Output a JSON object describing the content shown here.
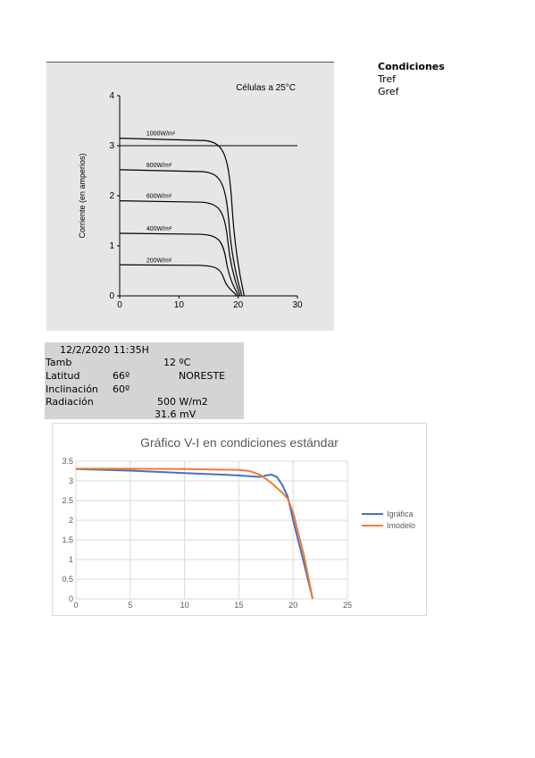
{
  "conditions": {
    "heading": "Condiciones",
    "tref": "Tref",
    "gref": "Gref"
  },
  "info": {
    "datetime": "12/2/2020 11:35H",
    "tamb_label": "Tamb",
    "tamb_value": "12 ºC",
    "latitud_label": "Latitud",
    "latitud_value": "66º",
    "orientation": "NORESTE",
    "inclinacion_label": "Inclinación",
    "inclinacion_value": "60º",
    "radiacion_label": "Radiación",
    "radiacion_value": "500 W/m2",
    "voltage_value": "31.6 mV"
  },
  "chart_data": [
    {
      "type": "line",
      "title": "",
      "annotation": "Células a 25°C",
      "xlabel": "",
      "ylabel": "Corriente (en amperios)",
      "xlim": [
        0,
        30
      ],
      "ylim": [
        0,
        4
      ],
      "xticks": [
        0,
        10,
        20,
        30
      ],
      "yticks": [
        0,
        1,
        2,
        3,
        4
      ],
      "grid": false,
      "reference_line_y": 3.0,
      "series": [
        {
          "name": "1000W/m²",
          "isc": 3.15,
          "voc": 21.0,
          "knee": 17.0,
          "x": [
            0,
            5,
            10,
            15,
            16,
            17,
            18,
            19,
            20,
            21
          ],
          "y": [
            3.15,
            3.13,
            3.11,
            3.08,
            3.06,
            3.0,
            2.6,
            1.7,
            0.8,
            0
          ]
        },
        {
          "name": "800W/m²",
          "isc": 2.52,
          "voc": 20.6,
          "knee": 16.5,
          "x": [
            0,
            5,
            10,
            15,
            16,
            17,
            18,
            19,
            20,
            20.6
          ],
          "y": [
            2.52,
            2.51,
            2.49,
            2.47,
            2.44,
            2.3,
            1.8,
            1.1,
            0.4,
            0
          ]
        },
        {
          "name": "600W/m²",
          "isc": 1.9,
          "voc": 20.3,
          "knee": 16.3,
          "x": [
            0,
            5,
            10,
            15,
            16,
            17,
            18,
            19,
            20,
            20.3
          ],
          "y": [
            1.9,
            1.89,
            1.88,
            1.86,
            1.83,
            1.7,
            1.3,
            0.8,
            0.25,
            0
          ]
        },
        {
          "name": "400W/m²",
          "isc": 1.25,
          "voc": 20.0,
          "knee": 16.0,
          "x": [
            0,
            5,
            10,
            15,
            16,
            17,
            18,
            19,
            20
          ],
          "y": [
            1.25,
            1.25,
            1.24,
            1.23,
            1.2,
            1.08,
            0.8,
            0.4,
            0
          ]
        },
        {
          "name": "200W/m²",
          "isc": 0.62,
          "voc": 19.7,
          "knee": 15.6,
          "x": [
            0,
            5,
            10,
            15,
            16,
            17,
            18,
            19,
            19.7
          ],
          "y": [
            0.62,
            0.62,
            0.61,
            0.6,
            0.58,
            0.5,
            0.35,
            0.15,
            0
          ]
        }
      ]
    },
    {
      "type": "line",
      "title": "Gráfico V-I en condiciones estándar",
      "xlabel": "",
      "ylabel": "",
      "xlim": [
        0,
        25
      ],
      "ylim": [
        0,
        3.5
      ],
      "xticks": [
        0,
        5,
        10,
        15,
        20,
        25
      ],
      "yticks": [
        0,
        0.5,
        1,
        1.5,
        2,
        2.5,
        3,
        3.5
      ],
      "grid": true,
      "legend": "right",
      "series": [
        {
          "name": "Igráfica",
          "color": "#4472c4",
          "x": [
            0,
            5,
            10,
            15,
            17,
            17.5,
            18,
            18.5,
            19,
            19.5,
            20,
            21,
            21.8
          ],
          "y": [
            3.3,
            3.26,
            3.2,
            3.14,
            3.1,
            3.14,
            3.16,
            3.1,
            2.9,
            2.6,
            2.0,
            0.9,
            0
          ]
        },
        {
          "name": "Imodelo",
          "color": "#ed7d31",
          "x": [
            0,
            5,
            10,
            15,
            16,
            17,
            18,
            19,
            19.5,
            20,
            21,
            21.8
          ],
          "y": [
            3.31,
            3.31,
            3.3,
            3.28,
            3.25,
            3.15,
            2.95,
            2.7,
            2.55,
            2.2,
            1.1,
            0
          ]
        }
      ]
    }
  ]
}
